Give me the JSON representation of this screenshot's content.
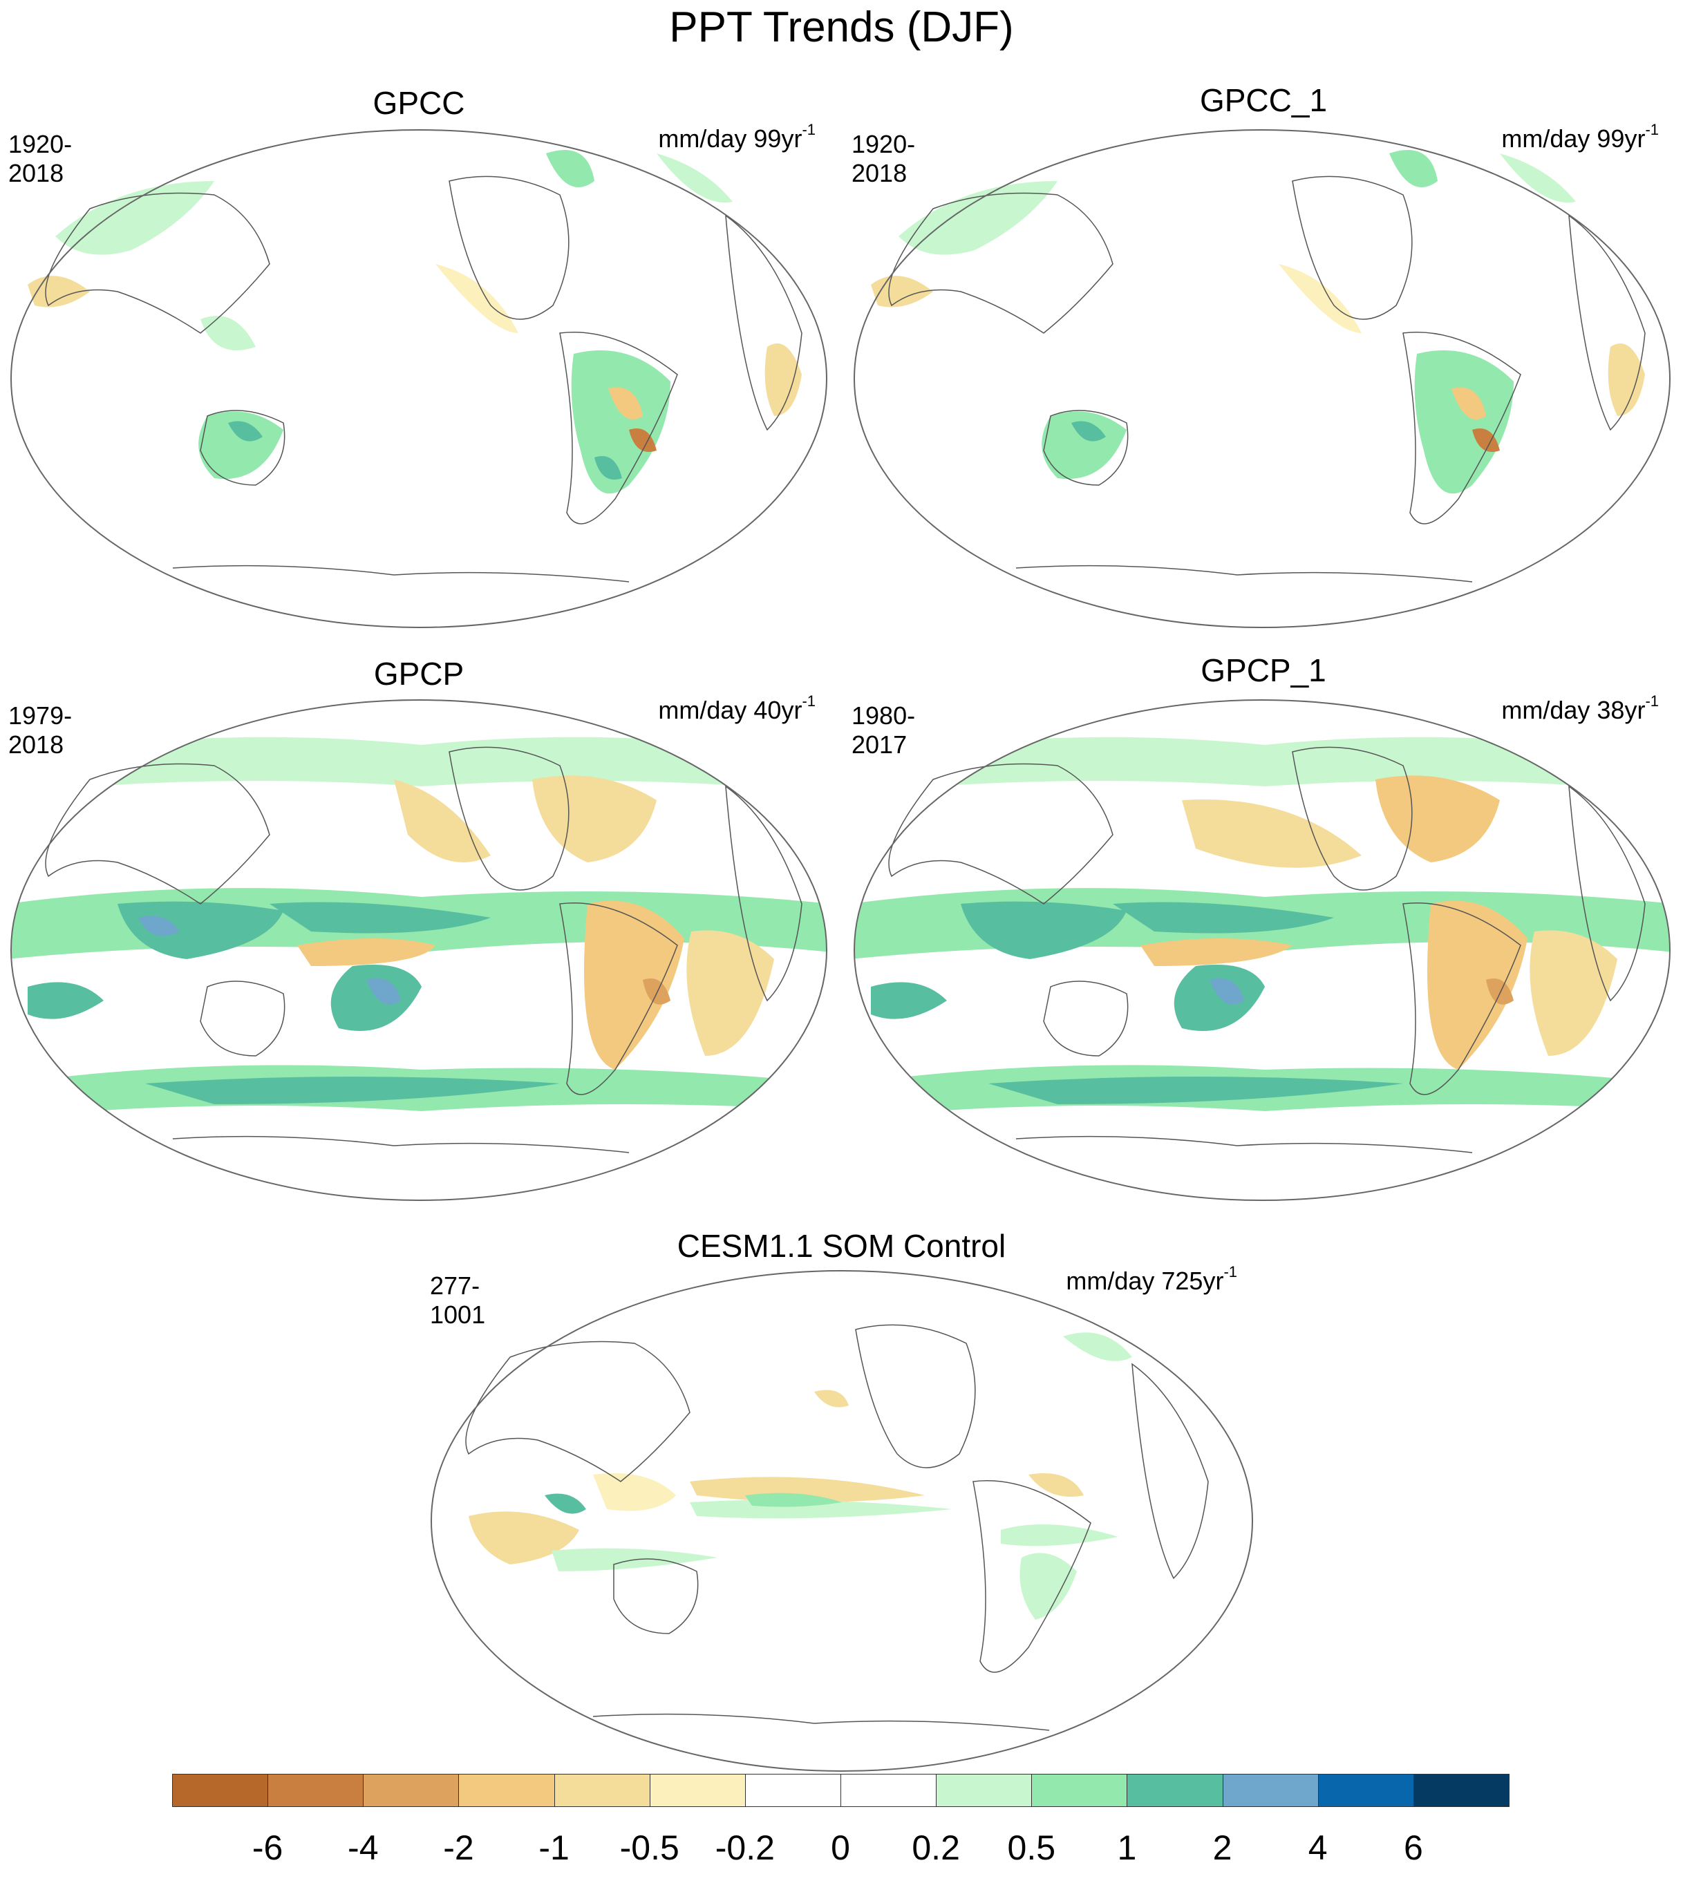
{
  "figure": {
    "title": "PPT Trends (DJF)"
  },
  "panels": [
    {
      "title": "GPCC",
      "period": "1920-2018",
      "units": "mm/day 99yr",
      "units_exp": "-1"
    },
    {
      "title": "GPCC_1",
      "period": "1920-2018",
      "units": "mm/day 99yr",
      "units_exp": "-1"
    },
    {
      "title": "GPCP",
      "period": "1979-2018",
      "units": "mm/day 40yr",
      "units_exp": "-1"
    },
    {
      "title": "GPCP_1",
      "period": "1980-2017",
      "units": "mm/day 38yr",
      "units_exp": "-1"
    },
    {
      "title": "CESM1.1 SOM Control",
      "period": "277-1001",
      "units": "mm/day 725yr",
      "units_exp": "-1"
    }
  ],
  "colorbar": {
    "colors": [
      "#b5682a",
      "#c97f3f",
      "#dca25e",
      "#f2c97f",
      "#f4dc9b",
      "#fcf0bc",
      "#ffffff",
      "#ffffff",
      "#c8f7cf",
      "#93e8ad",
      "#58bea0",
      "#6fa6cc",
      "#0866ad",
      "#053a62"
    ],
    "labels": [
      "-6",
      "-4",
      "-2",
      "-1",
      "-0.5",
      "-0.2",
      "0",
      "0.2",
      "0.5",
      "1",
      "2",
      "4",
      "6"
    ]
  }
}
